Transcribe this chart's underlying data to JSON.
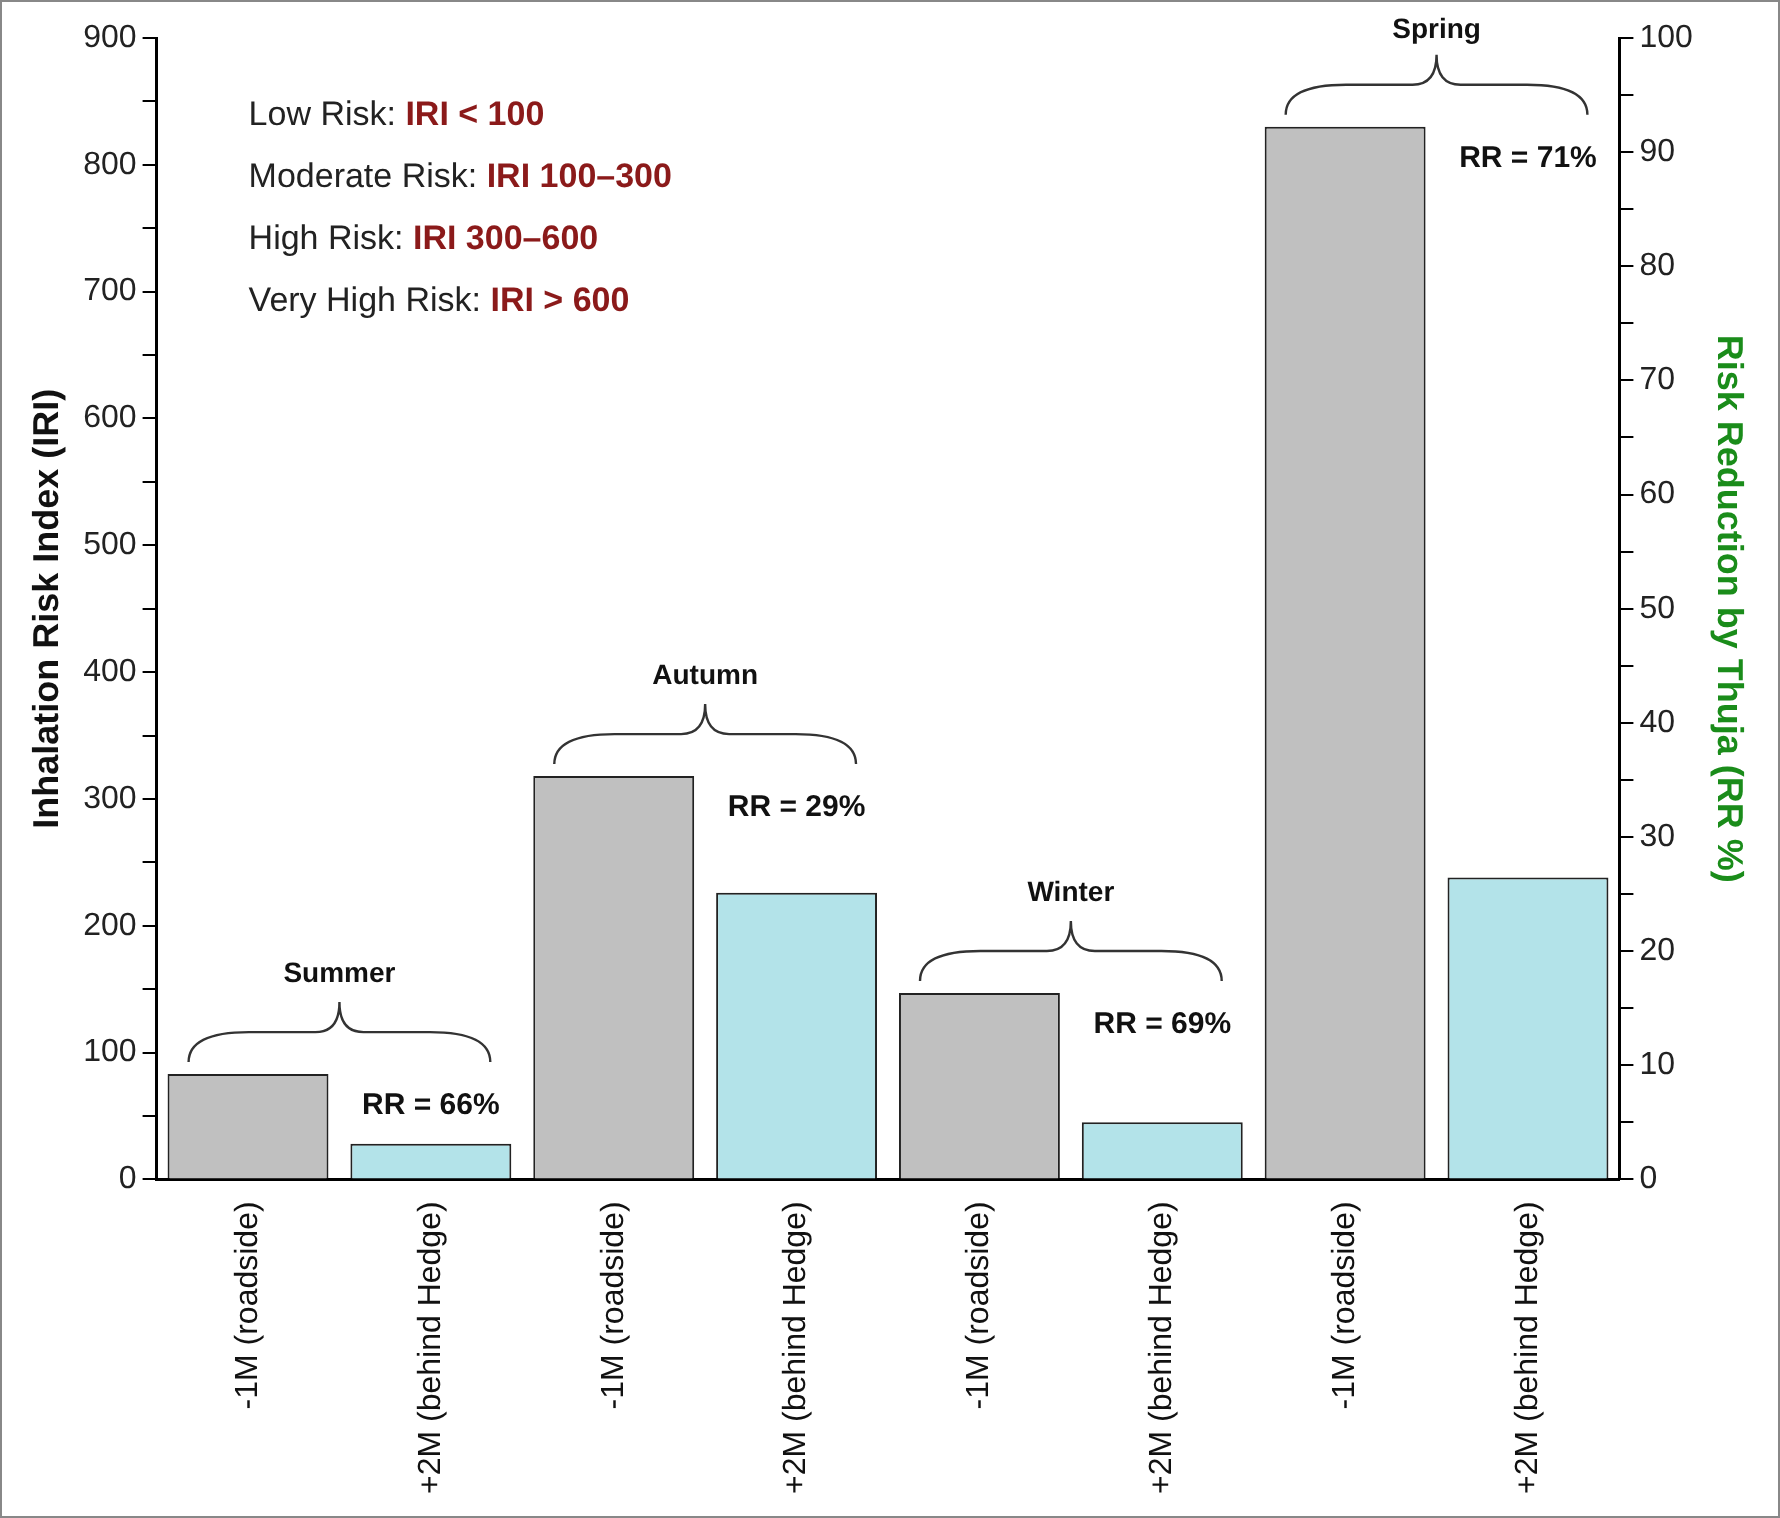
{
  "chart_data": {
    "type": "bar",
    "ylabel": "Inhalation Risk Index (IRI)",
    "y2label": "Risk Reduction by Thuja (RR %)",
    "categories": [
      "-1M (roadside)",
      "+2M (behind Hedge)",
      "-1M (roadside)",
      "+2M (behind Hedge)",
      "-1M (roadside)",
      "+2M (behind Hedge)",
      "-1M (roadside)",
      "+2M (behind Hedge)"
    ],
    "values": [
      83,
      28,
      318,
      226,
      147,
      45,
      830,
      238
    ],
    "colors": [
      "#c0c0c0",
      "#b3e3e9",
      "#c0c0c0",
      "#b3e3e9",
      "#c0c0c0",
      "#b3e3e9",
      "#c0c0c0",
      "#b3e3e9"
    ],
    "ylim": [
      0,
      900
    ],
    "yticks": [
      0,
      {
        "value": 50,
        "label": null
      },
      100,
      {
        "value": 150,
        "label": null
      },
      200,
      {
        "value": 250,
        "label": null
      },
      300,
      {
        "value": 350,
        "label": null
      },
      400,
      {
        "value": 450,
        "label": null
      },
      500,
      {
        "value": 550,
        "label": null
      },
      600,
      {
        "value": 650,
        "label": null
      },
      700,
      {
        "value": 750,
        "label": null
      },
      800,
      {
        "value": 850,
        "label": null
      },
      900
    ],
    "y2lim": [
      0,
      100
    ],
    "y2ticks": [
      0,
      {
        "value": 5,
        "label": null
      },
      10,
      {
        "value": 15,
        "label": null
      },
      20,
      {
        "value": 25,
        "label": null
      },
      30,
      {
        "value": 35,
        "label": null
      },
      40,
      {
        "value": 45,
        "label": null
      },
      50,
      {
        "value": 55,
        "label": null
      },
      60,
      {
        "value": 65,
        "label": null
      },
      70,
      {
        "value": 75,
        "label": null
      },
      80,
      {
        "value": 85,
        "label": null
      },
      90,
      {
        "value": 95,
        "label": null
      },
      100
    ],
    "grid": false,
    "legend": false,
    "annotations": [
      "Low Risk: IRI < 100",
      "Moderate Risk: IRI 100–300",
      "High Risk: IRI 300–600",
      "Very High Risk: IRI > 600",
      "Summer",
      "Autumn",
      "Winter",
      "Spring",
      "RR = 66%",
      "RR = 29%",
      "RR = 69%",
      "RR = 71%"
    ]
  }
}
